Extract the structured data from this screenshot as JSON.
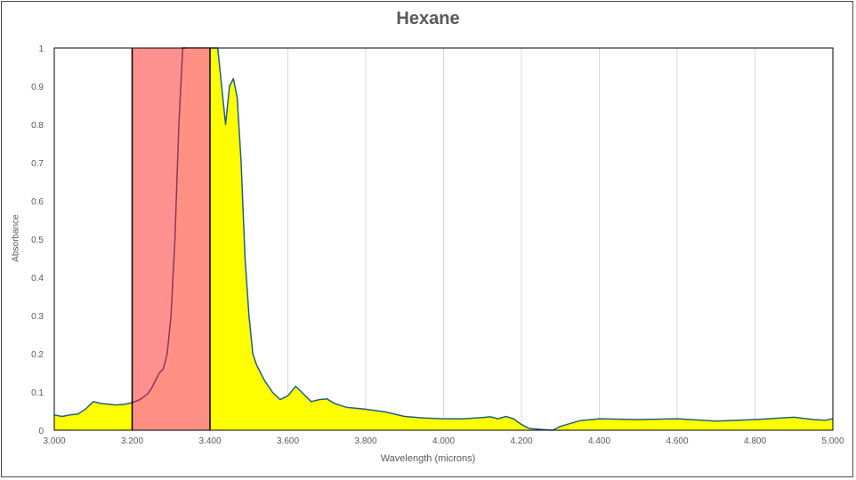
{
  "chart_data": {
    "type": "area",
    "title": "Hexane",
    "xlabel": "Wavelength (microns)",
    "ylabel": "Absorbance",
    "xlim": [
      3.0,
      5.0
    ],
    "ylim": [
      0,
      1
    ],
    "x_ticks": [
      "3.000",
      "3.200",
      "3.400",
      "3.600",
      "3.800",
      "4.000",
      "4.200",
      "4.400",
      "4.600",
      "4.800",
      "5.000"
    ],
    "y_ticks": [
      "0",
      "0.1",
      "0.2",
      "0.3",
      "0.4",
      "0.5",
      "0.6",
      "0.7",
      "0.8",
      "0.9",
      "1"
    ],
    "grid": "vertical",
    "colors": {
      "fill": "#ffff00",
      "line": "#1f5f8b",
      "band": "#ff8a8a",
      "band_border": "#000000"
    },
    "highlight_band": [
      3.2,
      3.4
    ],
    "series": [
      {
        "x": [
          3.0,
          3.02,
          3.04,
          3.06,
          3.08,
          3.1,
          3.12,
          3.14,
          3.16,
          3.18,
          3.2,
          3.22,
          3.24,
          3.25,
          3.26,
          3.27,
          3.28,
          3.29,
          3.3,
          3.31,
          3.32,
          3.33,
          3.34,
          3.35,
          3.36,
          3.37,
          3.38,
          3.39,
          3.4,
          3.41,
          3.42,
          3.43,
          3.44,
          3.45,
          3.46,
          3.47,
          3.48,
          3.49,
          3.5,
          3.51,
          3.52,
          3.53,
          3.54,
          3.56,
          3.58,
          3.6,
          3.62,
          3.64,
          3.66,
          3.68,
          3.7,
          3.72,
          3.75,
          3.8,
          3.85,
          3.9,
          3.95,
          4.0,
          4.05,
          4.1,
          4.12,
          4.14,
          4.16,
          4.18,
          4.2,
          4.22,
          4.25,
          4.28,
          4.3,
          4.35,
          4.4,
          4.5,
          4.6,
          4.7,
          4.8,
          4.9,
          4.95,
          4.98,
          5.0
        ],
        "y": [
          0.04,
          0.036,
          0.04,
          0.042,
          0.055,
          0.075,
          0.07,
          0.068,
          0.066,
          0.068,
          0.072,
          0.08,
          0.095,
          0.11,
          0.13,
          0.15,
          0.16,
          0.2,
          0.3,
          0.5,
          0.8,
          1.0,
          1.0,
          1.0,
          1.0,
          1.0,
          1.0,
          1.0,
          1.0,
          1.0,
          1.0,
          0.9,
          0.8,
          0.9,
          0.92,
          0.87,
          0.7,
          0.45,
          0.3,
          0.2,
          0.17,
          0.15,
          0.13,
          0.1,
          0.08,
          0.09,
          0.115,
          0.095,
          0.075,
          0.08,
          0.082,
          0.07,
          0.06,
          0.055,
          0.048,
          0.036,
          0.032,
          0.03,
          0.03,
          0.033,
          0.035,
          0.03,
          0.036,
          0.03,
          0.015,
          0.005,
          0.002,
          0.0,
          0.01,
          0.025,
          0.03,
          0.028,
          0.03,
          0.024,
          0.028,
          0.034,
          0.028,
          0.026,
          0.03
        ]
      },
      {
        "x": [
          3.2,
          3.22,
          3.24,
          3.25,
          3.26,
          3.27,
          3.28,
          3.29,
          3.3,
          3.31,
          3.32,
          3.33,
          3.34
        ],
        "y": [
          0.072,
          0.08,
          0.095,
          0.11,
          0.13,
          0.15,
          0.16,
          0.2,
          0.3,
          0.5,
          0.8,
          1.0,
          1.0
        ]
      }
    ]
  }
}
